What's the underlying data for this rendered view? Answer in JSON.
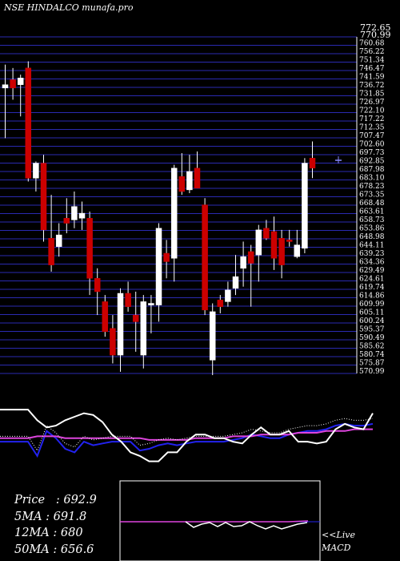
{
  "header": {
    "title": "NSE HINDALCO munafa.pro"
  },
  "price_axis": {
    "top_labels": [
      "772.65",
      "770.99"
    ],
    "tick_labels": [
      "760.68",
      "756.22",
      "751.34",
      "746.47",
      "741.59",
      "736.72",
      "731.85",
      "726.97",
      "722.10",
      "717.22",
      "712.35",
      "707.47",
      "702.60",
      "697.73",
      "692.85",
      "687.98",
      "683.10",
      "678.23",
      "673.35",
      "668.48",
      "663.61",
      "658.73",
      "653.86",
      "648.98",
      "644.11",
      "639.23",
      "634.36",
      "629.49",
      "624.61",
      "619.74",
      "614.86",
      "609.99",
      "605.11",
      "600.24",
      "595.37",
      "590.49",
      "585.62",
      "580.74",
      "575.87",
      "570.99"
    ]
  },
  "stats": {
    "price_label": "Price",
    "price_value": "692.9",
    "ma5_label": "5MA",
    "ma5_value": "691.8",
    "ma12_label": "12MA",
    "ma12_value": "680",
    "ma50_label": "50MA",
    "ma50_value": "656.6"
  },
  "live": {
    "line1": "<<Live",
    "line2": "MACD"
  },
  "colors": {
    "up": "#ffffff",
    "down": "#cc0000",
    "grid": "#2a2ab0",
    "ma_blue": "#2222ee",
    "ma_magenta": "#dd44dd"
  },
  "chart_data": [
    {
      "type": "candlestick",
      "title": "NSE HINDALCO munafa.pro",
      "ylim": [
        570.99,
        772.65
      ],
      "candles": [
        {
          "o": 742,
          "h": 756,
          "l": 712,
          "c": 744,
          "dir": "up"
        },
        {
          "o": 747,
          "h": 754,
          "l": 735,
          "c": 742,
          "dir": "down"
        },
        {
          "o": 744,
          "h": 750,
          "l": 725,
          "c": 748,
          "dir": "up"
        },
        {
          "o": 754,
          "h": 758,
          "l": 686,
          "c": 688,
          "dir": "down"
        },
        {
          "o": 688,
          "h": 698,
          "l": 680,
          "c": 697,
          "dir": "up"
        },
        {
          "o": 697,
          "h": 702,
          "l": 650,
          "c": 657,
          "dir": "down"
        },
        {
          "o": 652,
          "h": 678,
          "l": 632,
          "c": 636,
          "dir": "down"
        },
        {
          "o": 647,
          "h": 661,
          "l": 641,
          "c": 654,
          "dir": "up"
        },
        {
          "o": 664,
          "h": 676,
          "l": 655,
          "c": 661,
          "dir": "down"
        },
        {
          "o": 663,
          "h": 680,
          "l": 658,
          "c": 671,
          "dir": "up"
        },
        {
          "o": 667,
          "h": 674,
          "l": 657,
          "c": 664,
          "dir": "up"
        },
        {
          "o": 664,
          "h": 668,
          "l": 618,
          "c": 628,
          "dir": "down"
        },
        {
          "o": 628,
          "h": 634,
          "l": 606,
          "c": 620,
          "dir": "down"
        },
        {
          "o": 614,
          "h": 618,
          "l": 593,
          "c": 596,
          "dir": "down"
        },
        {
          "o": 598,
          "h": 606,
          "l": 577,
          "c": 582,
          "dir": "down"
        },
        {
          "o": 582,
          "h": 622,
          "l": 572,
          "c": 619,
          "dir": "up"
        },
        {
          "o": 619,
          "h": 626,
          "l": 608,
          "c": 611,
          "dir": "down"
        },
        {
          "o": 606,
          "h": 620,
          "l": 584,
          "c": 602,
          "dir": "down"
        },
        {
          "o": 582,
          "h": 618,
          "l": 574,
          "c": 614,
          "dir": "up"
        },
        {
          "o": 612,
          "h": 618,
          "l": 595,
          "c": 613,
          "dir": "up"
        },
        {
          "o": 612,
          "h": 661,
          "l": 602,
          "c": 658,
          "dir": "up"
        },
        {
          "o": 643,
          "h": 651,
          "l": 628,
          "c": 638,
          "dir": "down"
        },
        {
          "o": 640,
          "h": 696,
          "l": 626,
          "c": 694,
          "dir": "up"
        },
        {
          "o": 689,
          "h": 703,
          "l": 678,
          "c": 680,
          "dir": "down"
        },
        {
          "o": 681,
          "h": 702,
          "l": 679,
          "c": 692,
          "dir": "up"
        },
        {
          "o": 694,
          "h": 704,
          "l": 682,
          "c": 682,
          "dir": "down"
        },
        {
          "o": 672,
          "h": 676,
          "l": 606,
          "c": 609,
          "dir": "down"
        },
        {
          "o": 608,
          "h": 613,
          "l": 570,
          "c": 579,
          "dir": "up"
        },
        {
          "o": 611,
          "h": 618,
          "l": 607,
          "c": 615,
          "dir": "down"
        },
        {
          "o": 614,
          "h": 626,
          "l": 611,
          "c": 621,
          "dir": "up"
        },
        {
          "o": 622,
          "h": 642,
          "l": 618,
          "c": 629,
          "dir": "up"
        },
        {
          "o": 634,
          "h": 650,
          "l": 623,
          "c": 641,
          "dir": "up"
        },
        {
          "o": 637,
          "h": 648,
          "l": 611,
          "c": 644,
          "dir": "down"
        },
        {
          "o": 642,
          "h": 660,
          "l": 626,
          "c": 657,
          "dir": "up"
        },
        {
          "o": 658,
          "h": 663,
          "l": 651,
          "c": 652,
          "dir": "down"
        },
        {
          "o": 656,
          "h": 665,
          "l": 633,
          "c": 640,
          "dir": "down"
        },
        {
          "o": 652,
          "h": 657,
          "l": 628,
          "c": 636,
          "dir": "down"
        },
        {
          "o": 651,
          "h": 657,
          "l": 647,
          "c": 650,
          "dir": "down"
        },
        {
          "o": 641,
          "h": 657,
          "l": 640,
          "c": 648,
          "dir": "up"
        },
        {
          "o": 646,
          "h": 700,
          "l": 643,
          "c": 697,
          "dir": "up"
        },
        {
          "o": 700,
          "h": 710,
          "l": 688,
          "c": 694,
          "dir": "down"
        }
      ]
    },
    {
      "type": "line",
      "title": "indicator panel",
      "series": [
        {
          "name": "",
          "values": [
            22,
            22,
            22,
            22,
            14,
            28,
            24,
            18,
            16,
            22,
            20,
            21,
            22,
            22,
            22,
            17,
            18,
            20,
            21,
            20,
            21,
            22,
            22,
            22,
            22,
            23,
            24,
            26,
            25,
            24,
            24,
            26,
            27,
            28,
            28,
            29,
            31,
            32,
            31,
            31,
            32
          ]
        },
        {
          "name": "",
          "values": [
            24,
            24,
            24,
            24,
            25,
            25,
            25,
            24,
            24,
            24,
            24,
            24,
            24,
            24,
            24,
            24,
            23,
            23,
            23,
            23,
            23,
            24,
            24,
            24,
            24,
            25,
            25,
            25,
            26,
            26,
            26,
            26,
            27,
            27,
            27,
            28,
            28,
            28,
            29,
            29,
            29
          ]
        },
        {
          "name": "",
          "values": [
            40,
            40,
            40,
            40,
            34,
            30,
            31,
            34,
            36,
            38,
            37,
            33,
            26,
            22,
            16,
            14,
            11,
            11,
            16,
            16,
            22,
            26,
            26,
            24,
            24,
            22,
            21,
            26,
            30,
            26,
            26,
            28,
            22,
            22,
            21,
            22,
            29,
            32,
            30,
            29,
            38
          ]
        }
      ]
    }
  ]
}
